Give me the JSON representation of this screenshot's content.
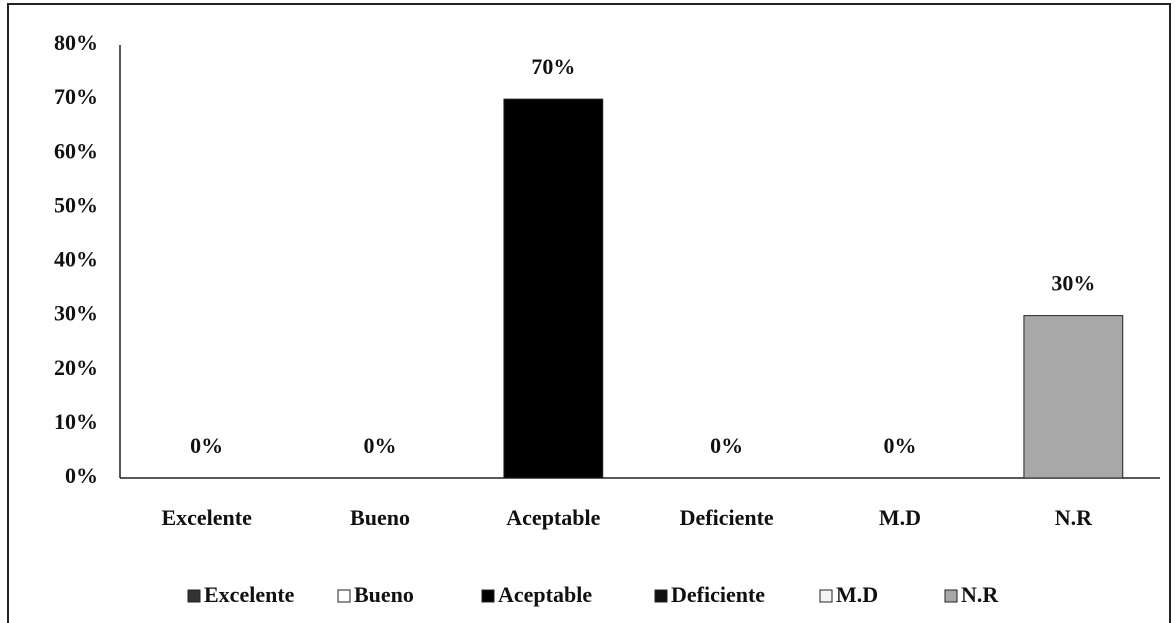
{
  "chart_data": {
    "type": "bar",
    "categories": [
      "Excelente",
      "Bueno",
      "Aceptable",
      "Deficiente",
      "M.D",
      "N.R"
    ],
    "values": [
      0,
      0,
      70,
      0,
      0,
      30
    ],
    "value_labels": [
      "0%",
      "0%",
      "70%",
      "0%",
      "0%",
      "30%"
    ],
    "colors": [
      "#333333",
      "#ffffff",
      "#000000",
      "#111111",
      "#f4f4f4",
      "#a8a8a8"
    ],
    "ylim": [
      0,
      80
    ],
    "yticks": [
      {
        "value": 0,
        "label": "0%"
      },
      {
        "value": 10,
        "label": "10%"
      },
      {
        "value": 20,
        "label": "20%"
      },
      {
        "value": 30,
        "label": "30%"
      },
      {
        "value": 40,
        "label": "40%"
      },
      {
        "value": 50,
        "label": "50%"
      },
      {
        "value": 60,
        "label": "60%"
      },
      {
        "value": 70,
        "label": "70%"
      },
      {
        "value": 80,
        "label": "80%"
      }
    ],
    "grid": false,
    "legend": "bottom"
  }
}
